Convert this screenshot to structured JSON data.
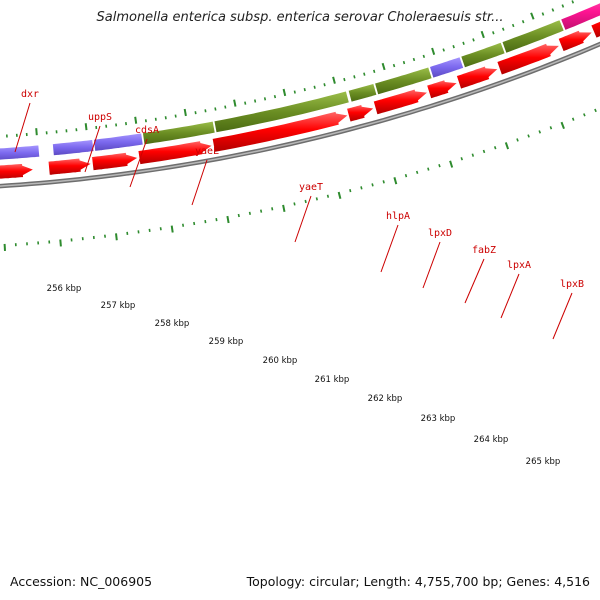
{
  "title": "Salmonella enterica subsp. enterica serovar Choleraesuis str...",
  "footer": {
    "accession": "Accession: NC_006905",
    "topology": "Topology: circular; Length: 4,755,700 bp; Genes: 4,516"
  },
  "colors": {
    "backbone": "#888888",
    "cds": "#ff0000",
    "ticks": "#2e8b2e",
    "label": "#cc0000",
    "purple": "#7b68ee",
    "olive": "#6b8e23",
    "magenta": "#ff1493"
  },
  "gene_labels": [
    "dxr",
    "uppS",
    "cdsA",
    "yaeL",
    "yaeT",
    "hlpA",
    "lpxD",
    "fabZ",
    "lpxA",
    "lpxB"
  ],
  "kbp_labels": [
    "256 kbp",
    "257 kbp",
    "258 kbp",
    "259 kbp",
    "260 kbp",
    "261 kbp",
    "262 kbp",
    "263 kbp",
    "264 kbp",
    "265 kbp"
  ],
  "cog_segments": [
    {
      "color": "purple"
    },
    {
      "color": "purple"
    },
    {
      "color": "purple"
    },
    {
      "color": "olive"
    },
    {
      "color": "olive"
    },
    {
      "color": "olive"
    },
    {
      "color": "olive"
    },
    {
      "color": "purple"
    },
    {
      "color": "olive"
    },
    {
      "color": "olive"
    },
    {
      "color": "magenta"
    }
  ],
  "cds_count": 13
}
